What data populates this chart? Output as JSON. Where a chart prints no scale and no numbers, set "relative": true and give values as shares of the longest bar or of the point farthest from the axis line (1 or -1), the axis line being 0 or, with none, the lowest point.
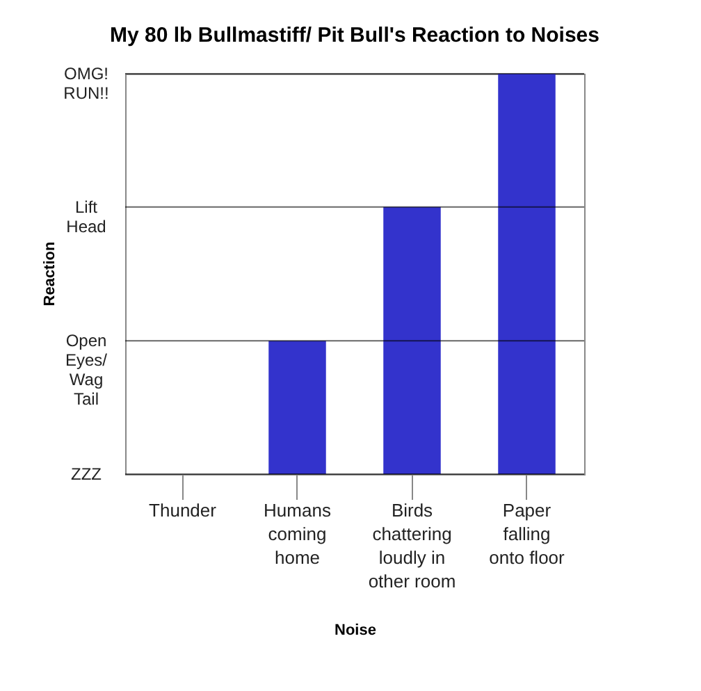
{
  "chart_data": {
    "type": "bar",
    "title": "My 80 lb Bullmastiff/ Pit Bull's Reaction to Noises",
    "xlabel": "Noise",
    "ylabel": "Reaction",
    "categories": [
      "Thunder",
      "Humans coming home",
      "Birds chattering loudly in other room",
      "Paper falling onto floor"
    ],
    "values": [
      0,
      0.333,
      0.667,
      1
    ],
    "color": "#3333cc",
    "relative": true,
    "ref_lines": [
      {
        "axis": "y",
        "value": 0,
        "label": "ZZZ"
      },
      {
        "axis": "y",
        "value": 0.333,
        "label": "Open Eyes/ Wag Tail"
      },
      {
        "axis": "y",
        "value": 0.667,
        "label": "Lift Head"
      },
      {
        "axis": "y",
        "value": 1,
        "label": "OMG! RUN!!"
      }
    ]
  }
}
